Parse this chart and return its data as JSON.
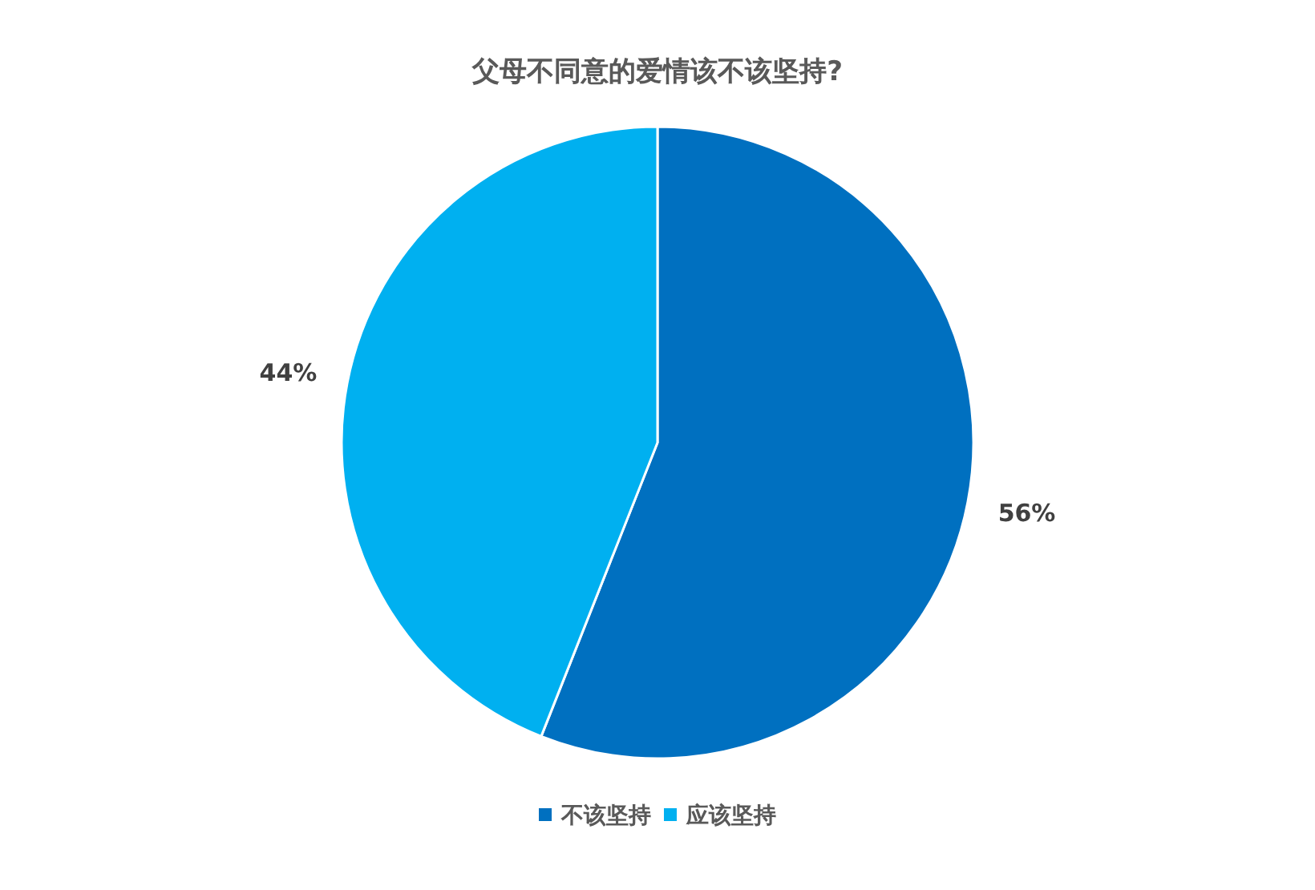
{
  "chart_data": {
    "type": "pie",
    "title": "父母不同意的爱情该不该坚持?",
    "categories": [
      "不该坚持",
      "应该坚持"
    ],
    "values": [
      56,
      44
    ],
    "colors": [
      "#0070c0",
      "#00b0f0"
    ],
    "value_labels": [
      "56%",
      "44%"
    ],
    "legend": "bottom"
  }
}
